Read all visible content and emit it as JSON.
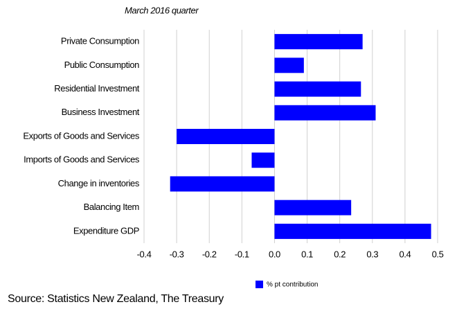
{
  "chart_data": {
    "type": "bar",
    "orientation": "horizontal",
    "subtitle": "March 2016 quarter",
    "categories": [
      "Private Consumption",
      "Public Consumption",
      "Residential Investment",
      "Business Investment",
      "Exports of Goods and Services",
      "Imports of Goods and Services",
      "Change in inventories",
      "Balancing Item",
      "Expenditure GDP"
    ],
    "series": [
      {
        "name": "% pt contribution",
        "color": "#0000ff",
        "values": [
          0.27,
          0.09,
          0.265,
          0.31,
          -0.3,
          -0.07,
          -0.32,
          0.235,
          0.48
        ]
      }
    ],
    "xlim": [
      -0.4,
      0.5
    ],
    "xticks": [
      -0.4,
      -0.3,
      -0.2,
      -0.1,
      {
        "value": 0,
        "label": "0.0"
      },
      0.1,
      0.2,
      0.3,
      0.4,
      0.5
    ],
    "grid": true,
    "legend": "bottom",
    "source": "Source: Statistics New Zealand, The Treasury"
  }
}
